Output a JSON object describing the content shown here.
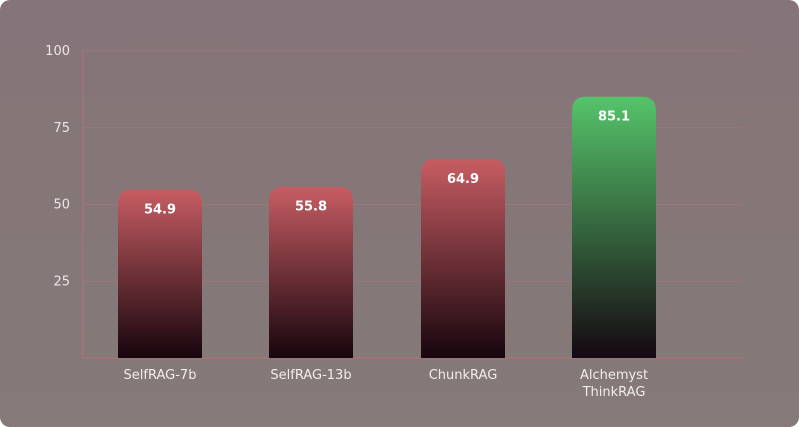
{
  "chart_data": {
    "type": "bar",
    "categories": [
      [
        "SelfRAG-7b"
      ],
      [
        "SelfRAG-13b"
      ],
      [
        "ChunkRAG"
      ],
      [
        "Alchemyst",
        "ThinkRAG"
      ]
    ],
    "values": [
      54.9,
      55.8,
      64.9,
      85.1
    ],
    "value_labels": [
      "54.9",
      "55.8",
      "64.9",
      "85.1"
    ],
    "bar_colors": [
      "red",
      "red",
      "red",
      "green"
    ],
    "y_ticks": [
      "25",
      "50",
      "75",
      "100"
    ],
    "ylim": [
      0,
      100
    ],
    "grid": true,
    "title": "",
    "xlabel": "",
    "ylabel": ""
  },
  "colors": {
    "background_top": "#857479",
    "background_bottom": "#857a77",
    "grid": "#b3777c",
    "axis": "#b86f74",
    "red_top": "#c75d63",
    "red_bottom": "#17050d",
    "green_top": "#55c46a",
    "green_bottom": "#150812"
  }
}
